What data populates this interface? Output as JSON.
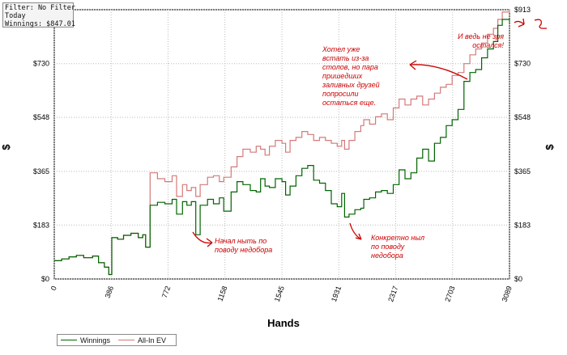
{
  "info_box": {
    "filter": "Filter: No Filter",
    "period": "Today",
    "winnings": "Winnings: $847.01"
  },
  "legend": {
    "position": "bottom-left",
    "items": [
      {
        "label": "Winnings",
        "color": "#006400"
      },
      {
        "label": "All-In EV",
        "color": "#d47a7a"
      }
    ]
  },
  "annotations": [
    {
      "text": "И ведь не зря\nостался!",
      "color": "#cc0000"
    },
    {
      "text": "Хотел уже\nвстать из-за\nстолов, но пара\nпришедших\nзаливных друзей\nпопросили\nостаться еще.",
      "color": "#cc0000"
    },
    {
      "text": "Начал ныть по\nповоду недобора",
      "color": "#cc0000"
    },
    {
      "text": "Конкретно ныл\nпо поводу\nнедобора",
      "color": "#cc0000"
    }
  ],
  "chart_data": {
    "type": "line",
    "title": "",
    "xlabel": "Hands",
    "ylabel": "$",
    "xlim": [
      0,
      3089
    ],
    "ylim": [
      0,
      913
    ],
    "grid": true,
    "x_ticks": [
      "0",
      "386",
      "772",
      "1158",
      "1545",
      "1931",
      "2317",
      "2703",
      "3089"
    ],
    "y_ticks": [
      "$0",
      "$183",
      "$365",
      "$548",
      "$730",
      "$913"
    ],
    "series": [
      {
        "name": "Winnings",
        "color": "#006400",
        "points": [
          [
            0,
            62
          ],
          [
            50,
            68
          ],
          [
            100,
            75
          ],
          [
            150,
            80
          ],
          [
            200,
            72
          ],
          [
            260,
            78
          ],
          [
            300,
            55
          ],
          [
            340,
            40
          ],
          [
            370,
            15
          ],
          [
            390,
            140
          ],
          [
            430,
            135
          ],
          [
            470,
            148
          ],
          [
            520,
            155
          ],
          [
            570,
            140
          ],
          [
            600,
            150
          ],
          [
            620,
            108
          ],
          [
            650,
            250
          ],
          [
            700,
            260
          ],
          [
            750,
            255
          ],
          [
            800,
            270
          ],
          [
            830,
            220
          ],
          [
            870,
            262
          ],
          [
            900,
            250
          ],
          [
            930,
            262
          ],
          [
            960,
            150
          ],
          [
            990,
            250
          ],
          [
            1040,
            270
          ],
          [
            1080,
            255
          ],
          [
            1120,
            275
          ],
          [
            1150,
            230
          ],
          [
            1200,
            295
          ],
          [
            1240,
            330
          ],
          [
            1280,
            320
          ],
          [
            1330,
            300
          ],
          [
            1370,
            295
          ],
          [
            1400,
            340
          ],
          [
            1430,
            315
          ],
          [
            1460,
            310
          ],
          [
            1500,
            340
          ],
          [
            1545,
            330
          ],
          [
            1570,
            285
          ],
          [
            1600,
            315
          ],
          [
            1640,
            350
          ],
          [
            1680,
            375
          ],
          [
            1720,
            385
          ],
          [
            1760,
            335
          ],
          [
            1800,
            325
          ],
          [
            1840,
            300
          ],
          [
            1880,
            255
          ],
          [
            1920,
            245
          ],
          [
            1950,
            290
          ],
          [
            1970,
            210
          ],
          [
            2000,
            220
          ],
          [
            2040,
            235
          ],
          [
            2080,
            240
          ],
          [
            2100,
            270
          ],
          [
            2140,
            275
          ],
          [
            2180,
            295
          ],
          [
            2220,
            300
          ],
          [
            2260,
            290
          ],
          [
            2300,
            320
          ],
          [
            2340,
            370
          ],
          [
            2380,
            340
          ],
          [
            2420,
            360
          ],
          [
            2460,
            410
          ],
          [
            2500,
            440
          ],
          [
            2540,
            400
          ],
          [
            2580,
            460
          ],
          [
            2620,
            480
          ],
          [
            2660,
            520
          ],
          [
            2700,
            540
          ],
          [
            2740,
            575
          ],
          [
            2780,
            670
          ],
          [
            2820,
            700
          ],
          [
            2860,
            710
          ],
          [
            2900,
            750
          ],
          [
            2940,
            780
          ],
          [
            2980,
            805
          ],
          [
            3010,
            860
          ],
          [
            3040,
            880
          ],
          [
            3089,
            870
          ]
        ]
      },
      {
        "name": "All-In EV",
        "color": "#d47a7a",
        "points": [
          [
            0,
            62
          ],
          [
            50,
            68
          ],
          [
            100,
            75
          ],
          [
            150,
            80
          ],
          [
            200,
            72
          ],
          [
            260,
            78
          ],
          [
            300,
            55
          ],
          [
            340,
            40
          ],
          [
            370,
            15
          ],
          [
            390,
            140
          ],
          [
            430,
            135
          ],
          [
            470,
            148
          ],
          [
            520,
            155
          ],
          [
            570,
            140
          ],
          [
            600,
            150
          ],
          [
            620,
            108
          ],
          [
            650,
            360
          ],
          [
            700,
            340
          ],
          [
            750,
            330
          ],
          [
            800,
            350
          ],
          [
            830,
            280
          ],
          [
            870,
            320
          ],
          [
            900,
            300
          ],
          [
            930,
            310
          ],
          [
            960,
            280
          ],
          [
            990,
            320
          ],
          [
            1040,
            345
          ],
          [
            1080,
            350
          ],
          [
            1120,
            330
          ],
          [
            1150,
            345
          ],
          [
            1200,
            380
          ],
          [
            1240,
            415
          ],
          [
            1280,
            440
          ],
          [
            1330,
            430
          ],
          [
            1370,
            450
          ],
          [
            1400,
            440
          ],
          [
            1430,
            420
          ],
          [
            1460,
            450
          ],
          [
            1500,
            470
          ],
          [
            1545,
            460
          ],
          [
            1570,
            430
          ],
          [
            1600,
            470
          ],
          [
            1640,
            480
          ],
          [
            1680,
            500
          ],
          [
            1720,
            490
          ],
          [
            1760,
            470
          ],
          [
            1800,
            480
          ],
          [
            1840,
            470
          ],
          [
            1880,
            460
          ],
          [
            1920,
            450
          ],
          [
            1950,
            470
          ],
          [
            1970,
            440
          ],
          [
            2000,
            470
          ],
          [
            2040,
            500
          ],
          [
            2080,
            520
          ],
          [
            2100,
            540
          ],
          [
            2140,
            525
          ],
          [
            2180,
            550
          ],
          [
            2220,
            560
          ],
          [
            2260,
            540
          ],
          [
            2300,
            580
          ],
          [
            2340,
            610
          ],
          [
            2380,
            590
          ],
          [
            2420,
            610
          ],
          [
            2460,
            620
          ],
          [
            2500,
            590
          ],
          [
            2540,
            610
          ],
          [
            2580,
            630
          ],
          [
            2620,
            650
          ],
          [
            2660,
            660
          ],
          [
            2700,
            690
          ],
          [
            2740,
            700
          ],
          [
            2780,
            730
          ],
          [
            2820,
            760
          ],
          [
            2860,
            780
          ],
          [
            2900,
            800
          ],
          [
            2940,
            830
          ],
          [
            2980,
            850
          ],
          [
            3010,
            880
          ],
          [
            3040,
            905
          ],
          [
            3089,
            913
          ]
        ]
      }
    ]
  }
}
